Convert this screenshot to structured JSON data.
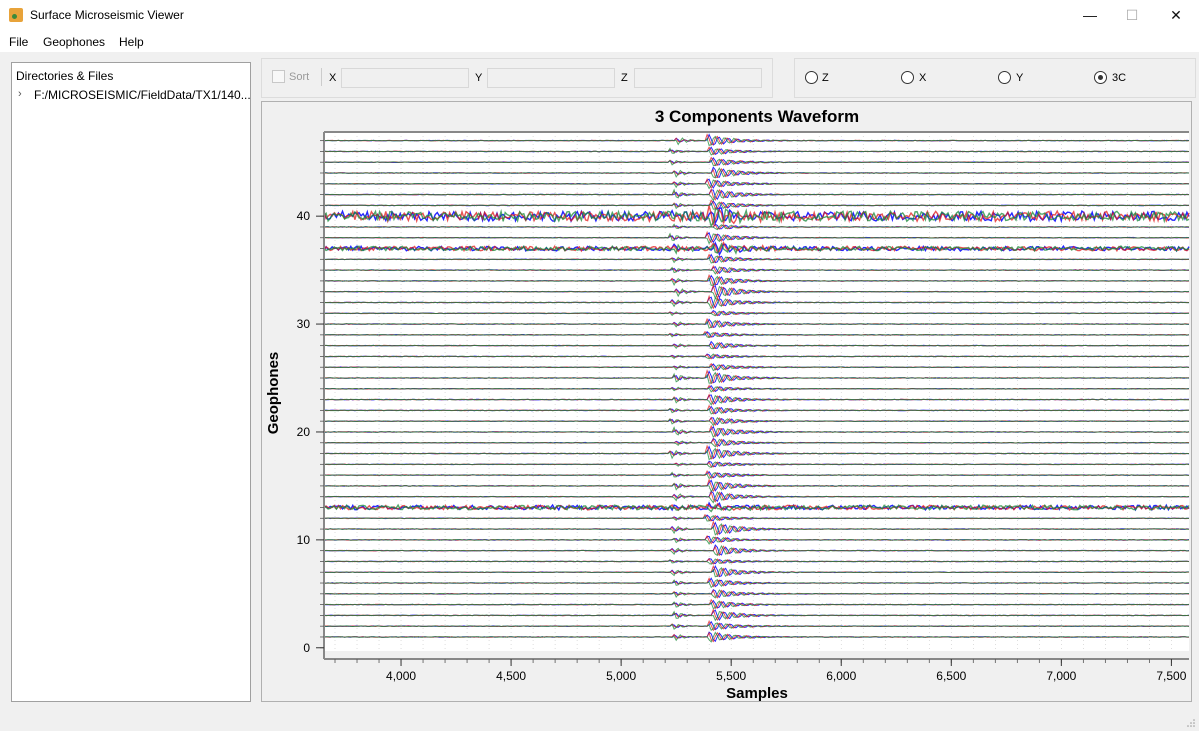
{
  "window": {
    "title": "Surface Microseismic Viewer",
    "controls": [
      "—",
      "☐",
      "✕"
    ]
  },
  "menu": {
    "items": [
      "File",
      "Geophones",
      "Help"
    ]
  },
  "tree": {
    "header": "Directories & Files",
    "items": [
      {
        "label": "F:/MICROSEISMIC/FieldData/TX1/140..."
      }
    ]
  },
  "toolbar": {
    "sort_label": "Sort",
    "x_label": "X",
    "y_label": "Y",
    "z_label": "Z",
    "x_value": "",
    "y_value": "",
    "z_value": ""
  },
  "components": {
    "options": [
      "Z",
      "X",
      "Y",
      "3C"
    ],
    "selected": "3C"
  },
  "chart_data": {
    "type": "line",
    "title": "3 Components Waveform",
    "xlabel": "Samples",
    "ylabel": "Geophones",
    "xlim": [
      3650,
      7580
    ],
    "ylim": [
      -0.3,
      47.8
    ],
    "xticks": [
      4000,
      4500,
      5000,
      5500,
      6000,
      6500,
      7000,
      7500
    ],
    "xtick_labels": [
      "4,000",
      "4,500",
      "5,000",
      "5,500",
      "6,000",
      "6,500",
      "7,000",
      "7,500"
    ],
    "yticks": [
      0,
      10,
      20,
      30,
      40
    ],
    "ytick_labels": [
      "0",
      "10",
      "20",
      "30",
      "40"
    ],
    "trace_count": 47,
    "trace_y": [
      1,
      2,
      3,
      4,
      5,
      6,
      7,
      8,
      9,
      10,
      11,
      12,
      13,
      14,
      15,
      16,
      17,
      18,
      19,
      20,
      21,
      22,
      23,
      24,
      25,
      26,
      27,
      28,
      29,
      30,
      31,
      32,
      33,
      34,
      35,
      36,
      37,
      38,
      39,
      40,
      41,
      42,
      43,
      44,
      45,
      46,
      47
    ],
    "series": [
      {
        "name": "Z",
        "color": "#1a1aff"
      },
      {
        "name": "X",
        "color": "#e01a1a"
      },
      {
        "name": "Y",
        "color": "#1a8a3a"
      }
    ],
    "first_arrival_sample": 5230,
    "second_arrival_sample": 5400,
    "noisy_traces": [
      13,
      37,
      40
    ],
    "grid": true
  }
}
